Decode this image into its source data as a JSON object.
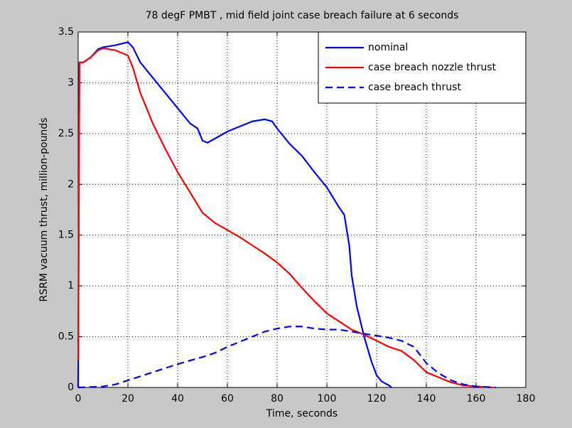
{
  "chart_data": {
    "type": "line",
    "title": "78 degF PMBT , mid field joint case breach failure at 6 seconds",
    "x_label": "Time, seconds",
    "y_label": "RSRM vacuum thrust, million-pounds",
    "xlim": [
      0,
      180
    ],
    "xticks": [
      0,
      20,
      40,
      60,
      80,
      100,
      120,
      140,
      160,
      180
    ],
    "ylim": [
      0,
      3.5
    ],
    "yticks": [
      0,
      0.5,
      1,
      1.5,
      2,
      2.5,
      3,
      3.5
    ],
    "grid": true,
    "legend": "upper right",
    "series": [
      {
        "name": "nominal",
        "color": "#0000ff",
        "linestyle": "solid",
        "x": [
          0,
          0.5,
          2,
          5,
          8,
          10,
          15,
          20,
          22,
          25,
          30,
          35,
          40,
          45,
          48,
          50,
          52,
          55,
          60,
          65,
          70,
          75,
          78,
          80,
          85,
          90,
          95,
          100,
          103,
          105,
          107,
          109,
          110,
          112,
          115,
          118,
          120,
          122,
          125,
          126
        ],
        "values": [
          0,
          3.2,
          3.2,
          3.25,
          3.33,
          3.35,
          3.37,
          3.4,
          3.35,
          3.2,
          3.05,
          2.9,
          2.75,
          2.6,
          2.55,
          2.43,
          2.41,
          2.45,
          2.52,
          2.57,
          2.62,
          2.64,
          2.62,
          2.55,
          2.4,
          2.28,
          2.12,
          1.97,
          1.85,
          1.77,
          1.7,
          1.4,
          1.1,
          0.8,
          0.5,
          0.25,
          0.12,
          0.06,
          0.02,
          0
        ]
      },
      {
        "name": "case breach nozzle thrust",
        "color": "#ff0000",
        "linestyle": "solid",
        "x": [
          0,
          0.5,
          2,
          5,
          8,
          10,
          15,
          20,
          22,
          25,
          30,
          35,
          40,
          45,
          50,
          55,
          60,
          65,
          70,
          75,
          80,
          85,
          90,
          95,
          100,
          105,
          110,
          115,
          120,
          125,
          130,
          135,
          140,
          145,
          150,
          155,
          160,
          167
        ],
        "values": [
          0.27,
          3.2,
          3.2,
          3.25,
          3.32,
          3.34,
          3.32,
          3.27,
          3.15,
          2.9,
          2.6,
          2.35,
          2.12,
          1.92,
          1.72,
          1.62,
          1.55,
          1.48,
          1.4,
          1.32,
          1.23,
          1.12,
          0.98,
          0.85,
          0.73,
          0.65,
          0.57,
          0.52,
          0.46,
          0.4,
          0.36,
          0.27,
          0.15,
          0.1,
          0.05,
          0.02,
          0.01,
          0
        ]
      },
      {
        "name": "case breach thrust",
        "color": "#0000ff",
        "linestyle": "dashed",
        "x": [
          0,
          10,
          15,
          20,
          30,
          40,
          50,
          55,
          60,
          65,
          70,
          75,
          80,
          85,
          90,
          95,
          100,
          105,
          110,
          115,
          120,
          125,
          130,
          135,
          140,
          145,
          150,
          155,
          160,
          168
        ],
        "values": [
          0,
          0.01,
          0.03,
          0.07,
          0.15,
          0.23,
          0.3,
          0.34,
          0.4,
          0.45,
          0.5,
          0.55,
          0.58,
          0.6,
          0.6,
          0.58,
          0.57,
          0.57,
          0.55,
          0.53,
          0.51,
          0.49,
          0.46,
          0.4,
          0.24,
          0.14,
          0.07,
          0.03,
          0.01,
          0
        ]
      }
    ]
  }
}
